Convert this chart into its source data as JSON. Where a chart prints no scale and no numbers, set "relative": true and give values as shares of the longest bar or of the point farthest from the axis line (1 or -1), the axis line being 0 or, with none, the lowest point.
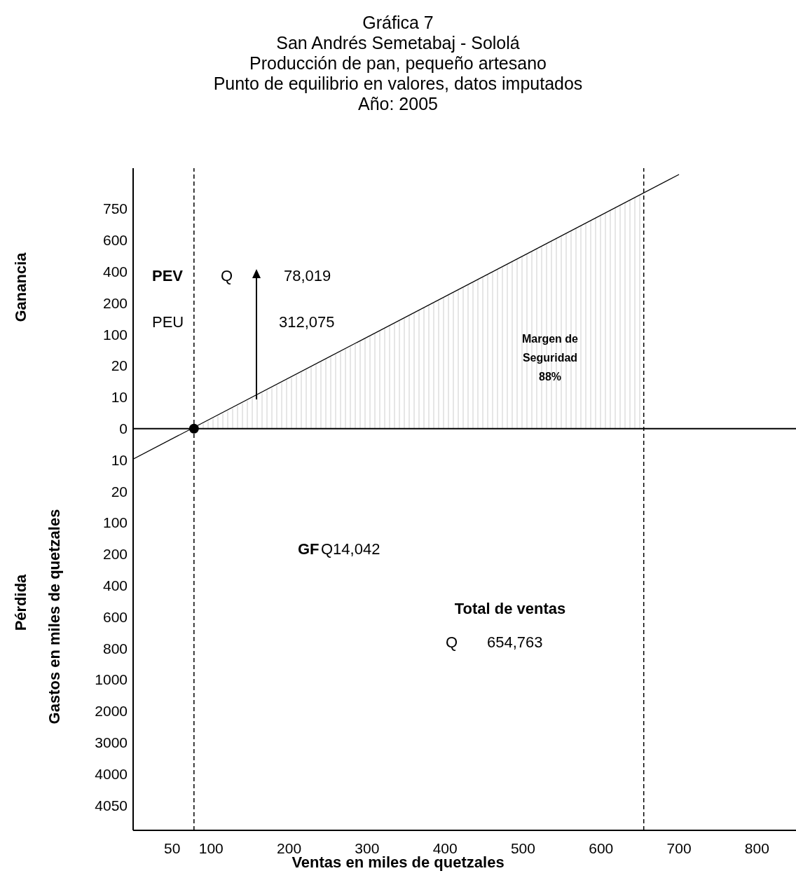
{
  "chart_data": {
    "type": "line",
    "title": "Gráfica 7",
    "subtitle": "San Andrés Semetabaj - Sololá\nProducción de pan, pequeño artesano\nPunto de equilibrio en valores, datos imputados\nAño: 2005",
    "xlabel": "Ventas en miles de quetzales",
    "ylabel": "Gastos en miles de quetzales",
    "annotations": [
      "Ganancia",
      "Pérdida",
      "PEV",
      "Q",
      "78,019",
      "PEU",
      "312,075",
      "Margen de\nSeguridad\n88%",
      "GF",
      "Q14,042",
      "Total de ventas",
      "Q",
      "654,763"
    ],
    "xlim": [
      0,
      850
    ],
    "xticks": [
      50,
      100,
      200,
      300,
      400,
      500,
      600,
      700,
      800
    ],
    "relative": true,
    "y_categories": [
      "750",
      "600",
      "400",
      "200",
      "100",
      "20",
      "10",
      "0",
      "10",
      "20",
      "100",
      "200",
      "400",
      "600",
      "800",
      "1000",
      "2000",
      "3000",
      "4000",
      "4050"
    ],
    "series": [
      {
        "type": "area",
        "color": "#c8c8c8",
        "x": [
          78.019,
          654.763
        ],
        "values": [
          0,
          0.93
        ]
      },
      {
        "color": "#000000",
        "x": [
          0,
          700
        ],
        "values": [
          -0.12,
          1
        ]
      },
      {
        "type": "scatter",
        "color": "#000000",
        "x": [
          78.019
        ],
        "values": [
          0
        ]
      }
    ],
    "ref_lines": [
      {
        "axis": "y",
        "value": 0,
        "color": "#000000",
        "line_style": "solid"
      },
      {
        "axis": "x",
        "value": 78.019,
        "color": "#000000",
        "line_style": "dashed"
      },
      {
        "axis": "x",
        "value": 654.763,
        "color": "#000000",
        "line_style": "dashed"
      }
    ],
    "grid": false,
    "legend": false
  }
}
